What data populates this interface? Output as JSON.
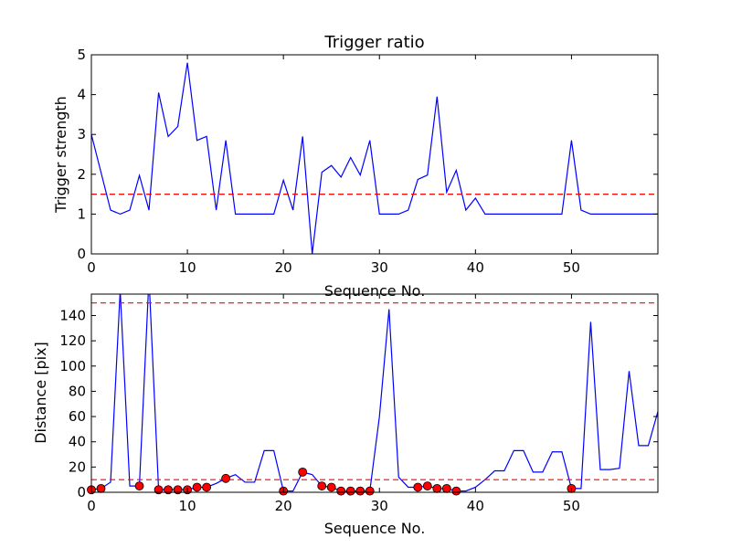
{
  "chart_data": [
    {
      "type": "line",
      "title": "Trigger ratio",
      "xlabel": "Sequence No.",
      "ylabel": "Trigger strength",
      "xlim": [
        0,
        59
      ],
      "ylim": [
        0,
        5
      ],
      "x_ticks": [
        0,
        10,
        20,
        30,
        40,
        50
      ],
      "y_ticks": [
        0,
        1,
        2,
        3,
        4,
        5
      ],
      "grid": false,
      "series": [
        {
          "color": "#0000ff",
          "x": [
            0,
            1,
            2,
            3,
            4,
            5,
            6,
            7,
            8,
            9,
            10,
            11,
            12,
            13,
            14,
            15,
            16,
            17,
            18,
            19,
            20,
            21,
            22,
            23,
            24,
            25,
            26,
            27,
            28,
            29,
            30,
            31,
            32,
            33,
            34,
            35,
            36,
            37,
            38,
            39,
            40,
            41,
            42,
            43,
            44,
            45,
            46,
            47,
            48,
            49,
            50,
            51,
            52,
            53,
            54,
            55,
            56,
            57,
            58,
            59
          ],
          "values": [
            3.0,
            2.05,
            1.1,
            1.0,
            1.1,
            1.97,
            1.1,
            4.05,
            2.95,
            3.2,
            4.8,
            2.85,
            2.95,
            1.1,
            2.85,
            1.0,
            1.0,
            1.0,
            1.0,
            1.0,
            1.85,
            1.1,
            2.95,
            0.0,
            2.05,
            2.22,
            1.93,
            2.42,
            1.98,
            2.85,
            1.0,
            1.0,
            1.0,
            1.1,
            1.87,
            1.98,
            3.95,
            1.55,
            2.1,
            1.1,
            1.4,
            1.0,
            1.0,
            1.0,
            1.0,
            1.0,
            1.0,
            1.0,
            1.0,
            1.0,
            2.85,
            1.1,
            1.0,
            1.0,
            1.0,
            1.0,
            1.0,
            1.0,
            1.0,
            1.0
          ]
        }
      ],
      "hlines": [
        {
          "y": 1.5,
          "color": "#ff0000",
          "style": "dashed"
        }
      ]
    },
    {
      "type": "line",
      "title": "",
      "xlabel": "Sequence No.",
      "ylabel": "Distance [pix]",
      "xlim": [
        0,
        59
      ],
      "ylim": [
        0,
        157
      ],
      "x_ticks": [
        0,
        10,
        20,
        30,
        40,
        50
      ],
      "y_ticks": [
        0,
        20,
        40,
        60,
        80,
        100,
        120,
        140
      ],
      "grid": false,
      "series": [
        {
          "color": "#0000ff",
          "x": [
            0,
            1,
            2,
            3,
            4,
            5,
            6,
            7,
            8,
            9,
            10,
            11,
            12,
            13,
            14,
            15,
            16,
            17,
            18,
            19,
            20,
            21,
            22,
            23,
            24,
            25,
            26,
            27,
            28,
            29,
            30,
            31,
            32,
            33,
            34,
            35,
            36,
            37,
            38,
            39,
            40,
            41,
            42,
            43,
            44,
            45,
            46,
            47,
            48,
            49,
            50,
            51,
            52,
            53,
            54,
            55,
            56,
            57,
            58,
            59
          ],
          "values": [
            2,
            3,
            8,
            160,
            5,
            5,
            170,
            2,
            2,
            2,
            2,
            4,
            4,
            7,
            11,
            14,
            8,
            8,
            33,
            33,
            1,
            1,
            16,
            14,
            5,
            4,
            1,
            1,
            1,
            1,
            60,
            145,
            12,
            4,
            4,
            5,
            3,
            3,
            1,
            1,
            4,
            10,
            17,
            17,
            33,
            33,
            16,
            16,
            32,
            32,
            3,
            3,
            135,
            18,
            18,
            19,
            96,
            37,
            37,
            64
          ]
        }
      ],
      "markers": {
        "color": "#ff0000",
        "x": [
          0,
          1,
          5,
          7,
          8,
          9,
          10,
          11,
          12,
          14,
          20,
          22,
          24,
          25,
          26,
          27,
          28,
          29,
          34,
          35,
          36,
          37,
          38,
          50
        ],
        "y": [
          2,
          3,
          5,
          2,
          2,
          2,
          2,
          4,
          4,
          11,
          1,
          16,
          5,
          4,
          1,
          1,
          1,
          1,
          4,
          5,
          3,
          3,
          1,
          3
        ]
      },
      "hlines": [
        {
          "y": 150,
          "color": "#ff0000",
          "style": "dashed"
        },
        {
          "y": 10,
          "color": "#ff0000",
          "style": "dashed"
        }
      ]
    }
  ]
}
